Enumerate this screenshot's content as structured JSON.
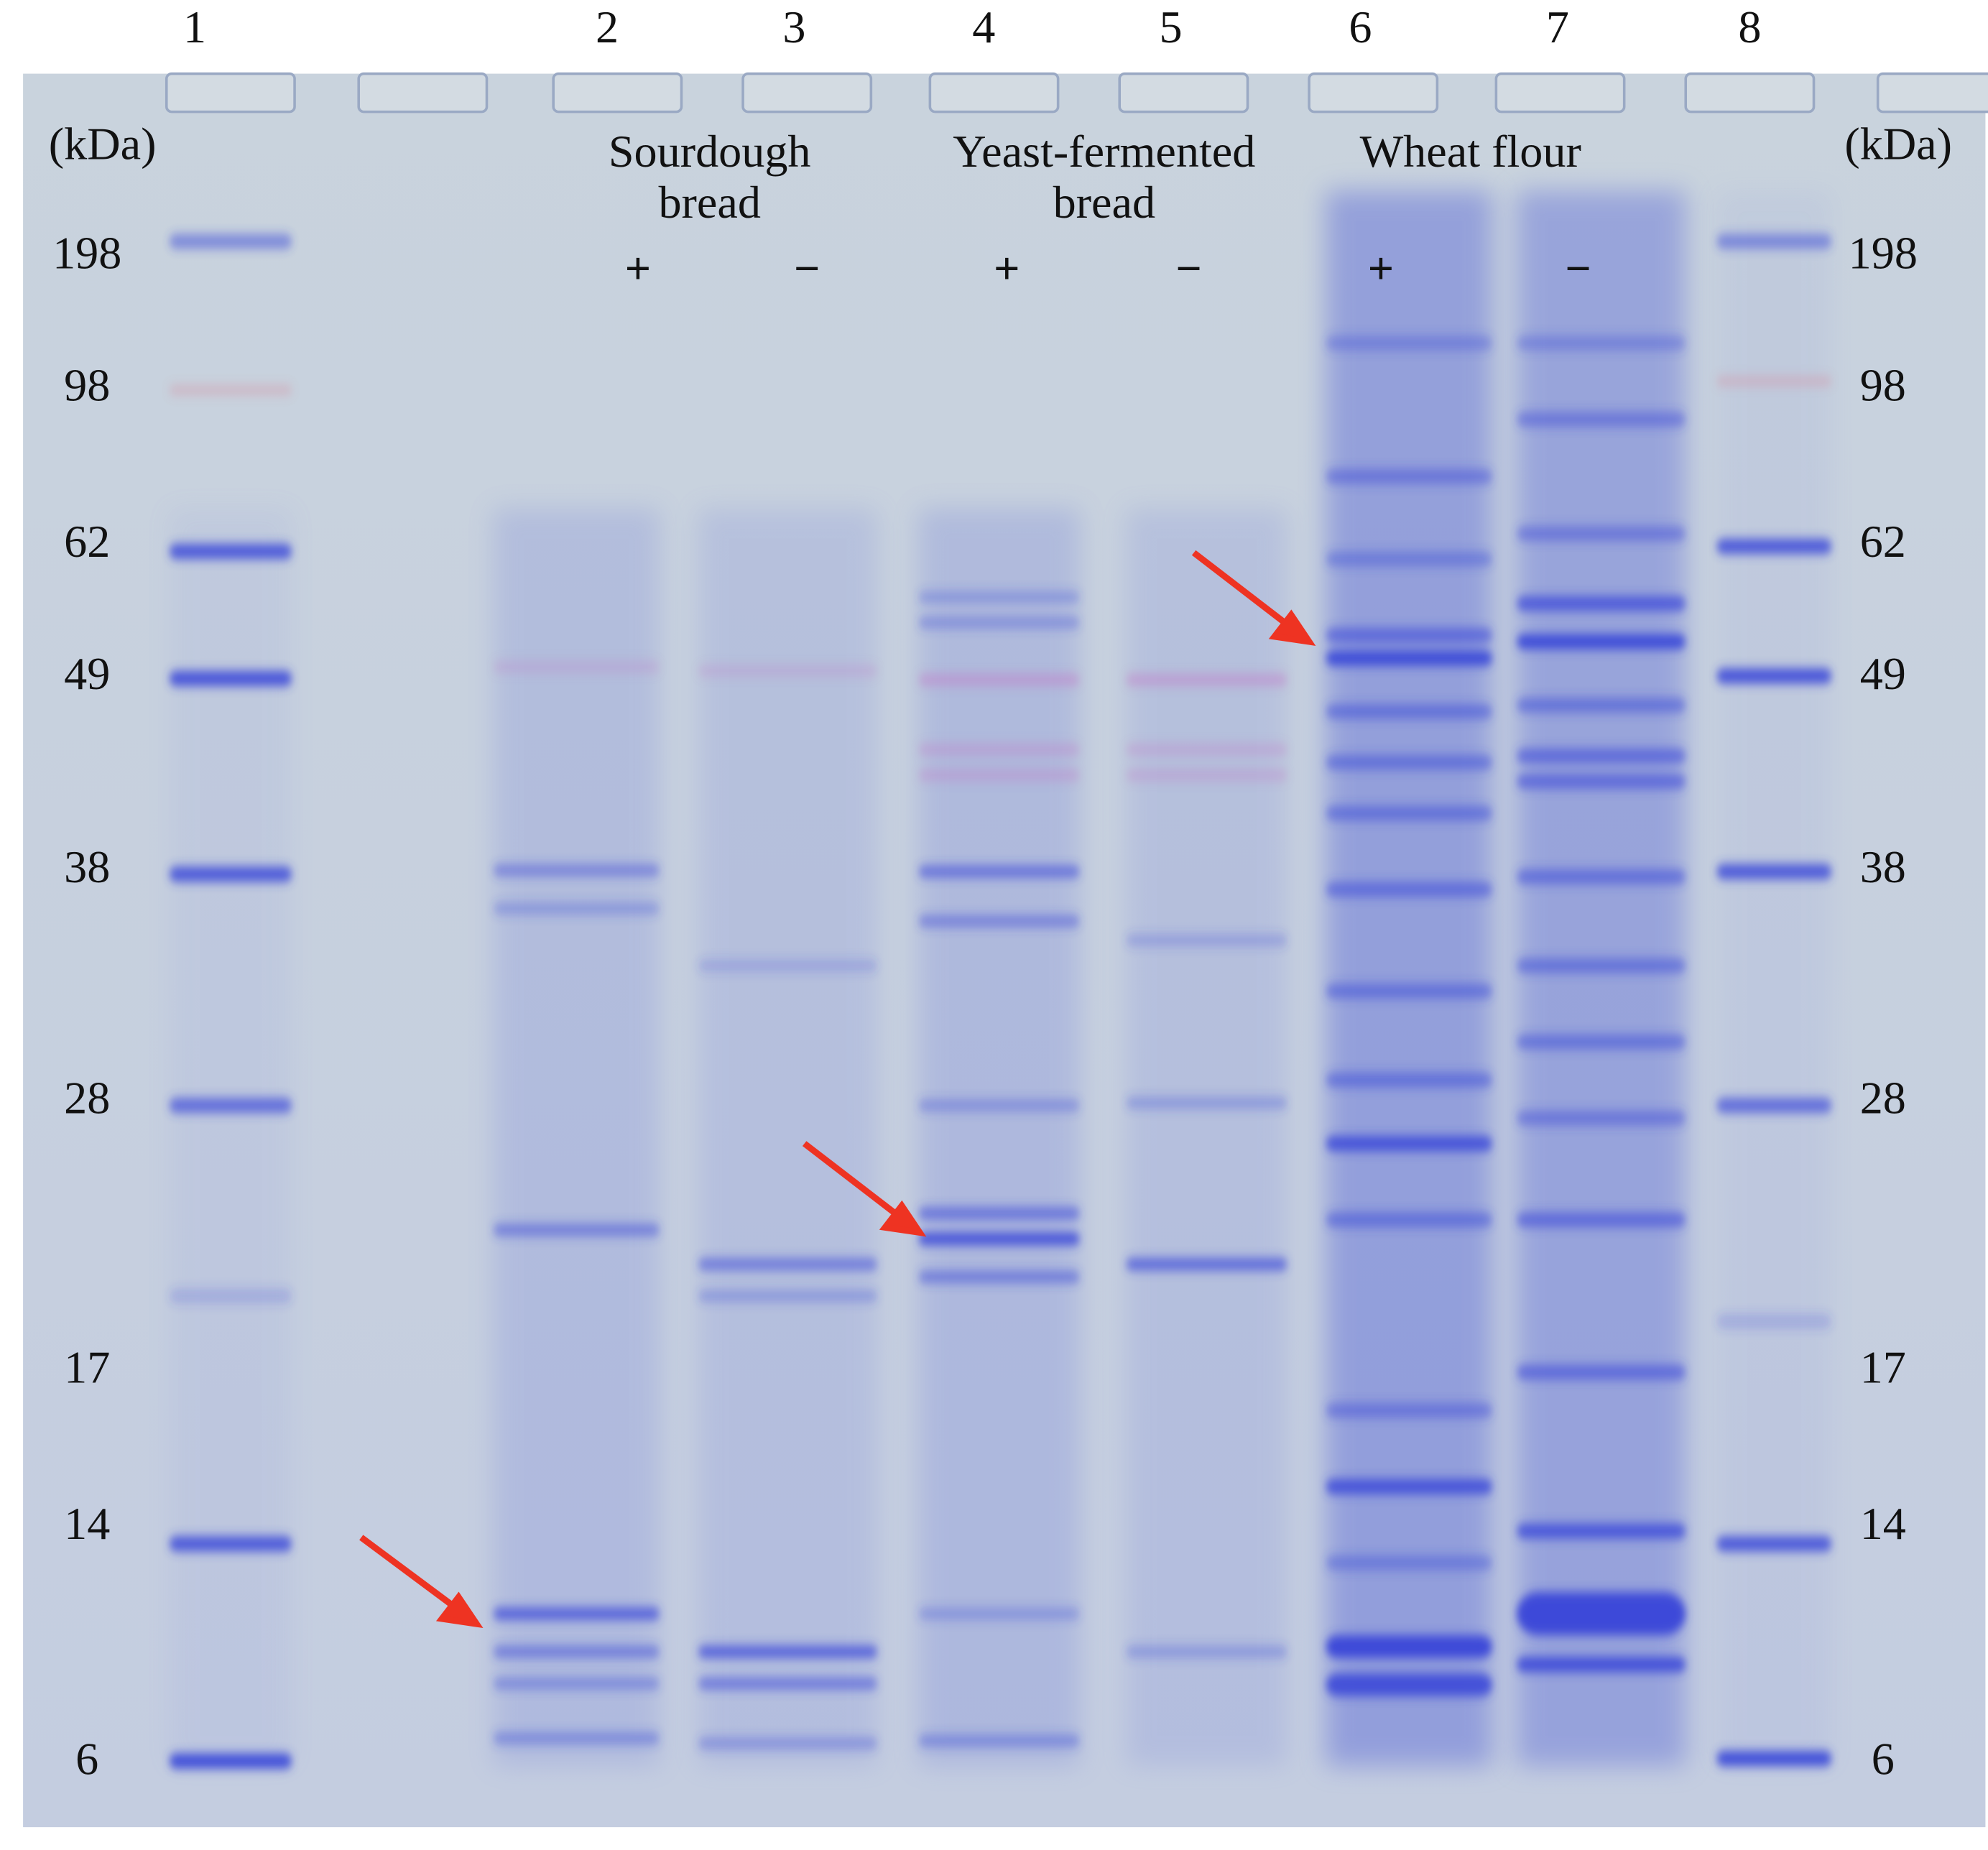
{
  "lanes": [
    "1",
    "2",
    "3",
    "4",
    "5",
    "6",
    "7",
    "8"
  ],
  "unit_left": "(kDa)",
  "unit_right": "(kDa)",
  "groups": [
    {
      "lines": [
        "Sourdough",
        "bread"
      ]
    },
    {
      "lines": [
        "Yeast-fermented",
        "bread"
      ]
    },
    {
      "lines": [
        "Wheat flour"
      ]
    }
  ],
  "signs": [
    "+",
    "−",
    "+",
    "−",
    "+",
    "−"
  ],
  "markers_left": [
    "198",
    "98",
    "62",
    "49",
    "38",
    "28",
    "17",
    "14",
    "6"
  ],
  "markers_right": [
    "198",
    "98",
    "62",
    "49",
    "38",
    "28",
    "17",
    "14",
    "6"
  ]
}
